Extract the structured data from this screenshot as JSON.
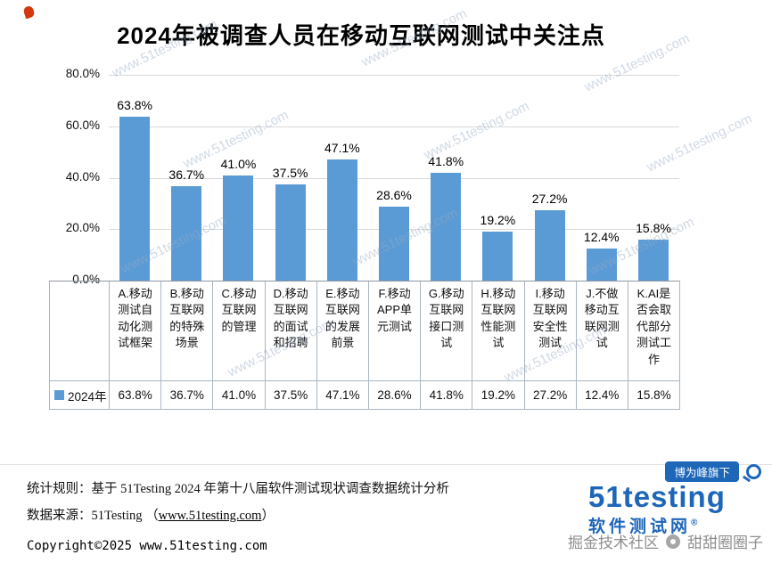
{
  "chart_data": {
    "type": "bar",
    "title": "2024年被调查人员在移动互联网测试中关注点",
    "categories": [
      "A.移动测试自动化测试框架",
      "B.移动互联网的特殊场景",
      "C.移动互联网的管理",
      "D.移动互联网的面试和招聘",
      "E.移动互联网的发展前景",
      "F.移动APP单元测试",
      "G.移动互联网接口测试",
      "H.移动互联网性能测试",
      "I.移动互联网安全性测试",
      "J.不做移动互联网测试",
      "K.AI是否会取代部分测试工作"
    ],
    "series": [
      {
        "name": "2024年",
        "values": [
          63.8,
          36.7,
          41.0,
          37.5,
          47.1,
          28.6,
          41.8,
          19.2,
          27.2,
          12.4,
          15.8
        ]
      }
    ],
    "value_labels": [
      "63.8%",
      "36.7%",
      "41.0%",
      "37.5%",
      "47.1%",
      "28.6%",
      "41.8%",
      "19.2%",
      "27.2%",
      "12.4%",
      "15.8%"
    ],
    "yticks": [
      "80.0%",
      "60.0%",
      "40.0%",
      "20.0%",
      "0.0%"
    ],
    "ylim": [
      0,
      80
    ],
    "grid": true,
    "legend_position": "table-left",
    "bar_color": "#5B9BD5"
  },
  "watermark": {
    "text": "www.51testing.com"
  },
  "footer": {
    "stat_rule": "统计规则：基于 51Testing 2024 年第十八届软件测试现状调查数据统计分析",
    "data_source_prefix": "数据来源：51Testing （",
    "data_source_link": "www.51testing.com",
    "data_source_suffix": "）",
    "copyright": "Copyright©2025 www.51testing.com"
  },
  "logo": {
    "badge": "博为峰旗下",
    "name": "51testing",
    "subtitle": "软件测试网",
    "registered": "®",
    "color": "#1e66b8"
  },
  "community_watermark": {
    "left": "掘金技术社区",
    "right": "甜甜圈圈子"
  }
}
